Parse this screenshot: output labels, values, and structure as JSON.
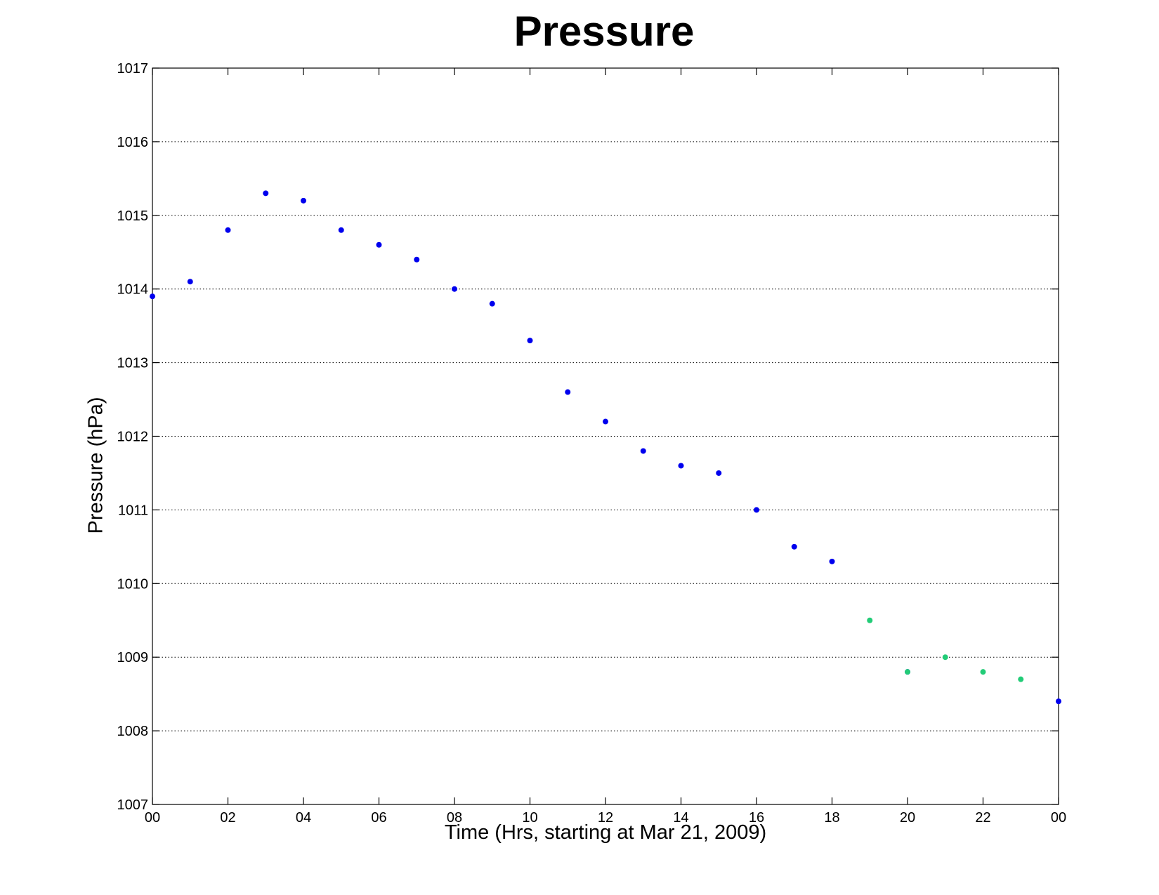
{
  "chart_data": {
    "type": "scatter",
    "title": "Pressure",
    "xlabel": "Time (Hrs, starting at Mar 21, 2009)",
    "ylabel": "Pressure (hPa)",
    "xlim": [
      0,
      24
    ],
    "ylim": [
      1007,
      1017
    ],
    "x_ticks": [
      "00",
      "02",
      "04",
      "06",
      "08",
      "10",
      "12",
      "14",
      "16",
      "18",
      "20",
      "22",
      "00"
    ],
    "y_ticks": [
      "1007",
      "1008",
      "1009",
      "1010",
      "1011",
      "1012",
      "1013",
      "1014",
      "1015",
      "1016",
      "1017"
    ],
    "grid": "horizontal dotted",
    "series": [
      {
        "color": "#0000ee",
        "x": [
          0,
          1,
          2,
          3,
          4,
          5,
          6,
          7,
          8,
          9,
          10,
          11,
          12,
          13,
          14,
          15,
          16,
          17,
          18,
          20,
          24
        ],
        "y": [
          1013.9,
          1014.1,
          1014.8,
          1015.3,
          1015.2,
          1014.8,
          1014.6,
          1014.4,
          1014.0,
          1013.8,
          1013.3,
          1012.6,
          1012.2,
          1011.8,
          1011.6,
          1011.5,
          1011.0,
          1010.5,
          1010.3,
          1008.8,
          1008.4
        ]
      },
      {
        "color": "#22cc77",
        "x": [
          19,
          20,
          21,
          22,
          23
        ],
        "y": [
          1009.5,
          1008.8,
          1009.0,
          1008.8,
          1008.7
        ]
      }
    ]
  }
}
